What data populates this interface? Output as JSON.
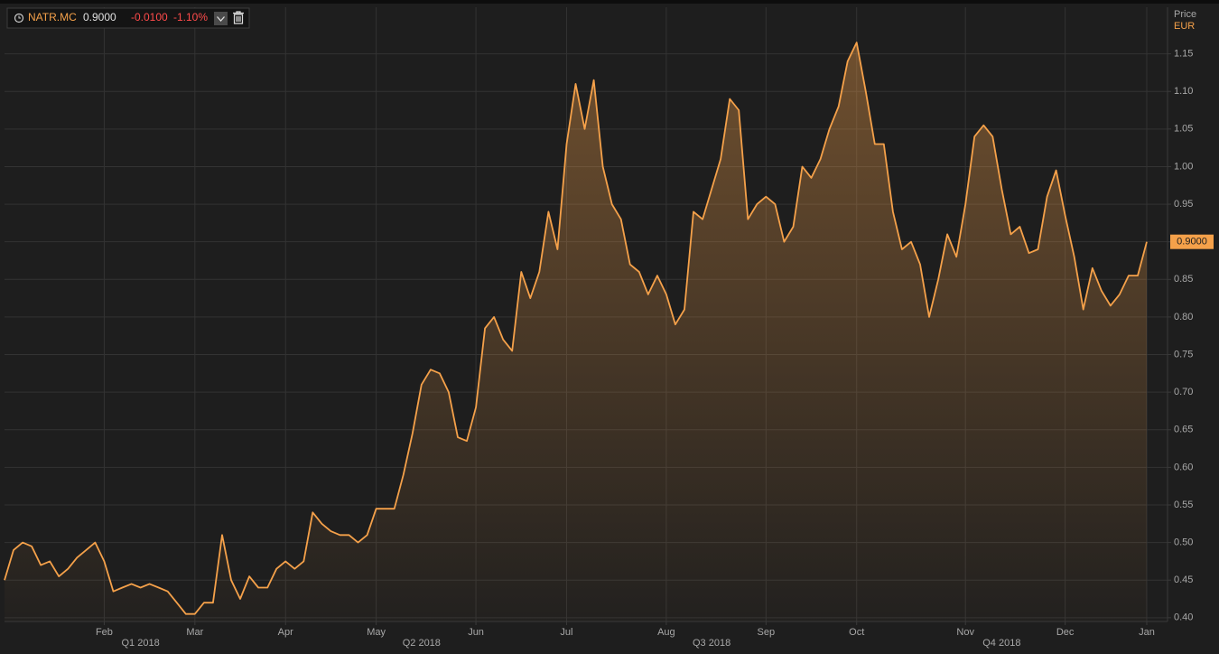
{
  "chart_data": {
    "type": "area",
    "ticker": "NATR.MC",
    "last_price": "0.9000",
    "change": "-0.0100",
    "change_pct": "-1.10%",
    "y_axis_label": "Price",
    "y_axis_unit": "EUR",
    "last_value_label": "0.9000",
    "categories": [
      null,
      null,
      null,
      null,
      null,
      null,
      null,
      null,
      null,
      null,
      null,
      "Feb",
      null,
      null,
      null,
      null,
      null,
      null,
      null,
      null,
      null,
      "Mar",
      null,
      null,
      null,
      null,
      null,
      null,
      null,
      null,
      null,
      "Apr",
      null,
      null,
      null,
      null,
      null,
      null,
      null,
      null,
      null,
      "May",
      null,
      null,
      null,
      null,
      null,
      null,
      null,
      null,
      null,
      null,
      "Jun",
      null,
      null,
      null,
      null,
      null,
      null,
      null,
      null,
      null,
      "Jul",
      null,
      null,
      null,
      null,
      null,
      null,
      null,
      null,
      null,
      null,
      "Aug",
      null,
      null,
      null,
      null,
      null,
      null,
      null,
      null,
      null,
      null,
      "Sep",
      null,
      null,
      null,
      null,
      null,
      null,
      null,
      null,
      null,
      "Oct",
      null,
      null,
      null,
      null,
      null,
      null,
      null,
      null,
      null,
      null,
      null,
      "Nov",
      null,
      null,
      null,
      null,
      null,
      null,
      null,
      null,
      null,
      null,
      "Dec",
      null,
      null,
      null,
      null,
      null,
      null,
      null,
      null,
      "Jan"
    ],
    "quarters": [
      null,
      null,
      null,
      null,
      null,
      null,
      null,
      null,
      null,
      null,
      null,
      null,
      null,
      null,
      null,
      "Q1 2018",
      null,
      null,
      null,
      null,
      null,
      null,
      null,
      null,
      null,
      null,
      null,
      null,
      null,
      null,
      null,
      null,
      null,
      null,
      null,
      null,
      null,
      null,
      null,
      null,
      null,
      null,
      null,
      null,
      null,
      null,
      "Q2 2018",
      null,
      null,
      null,
      null,
      null,
      null,
      null,
      null,
      null,
      null,
      null,
      null,
      null,
      null,
      null,
      null,
      null,
      null,
      null,
      null,
      null,
      null,
      null,
      null,
      null,
      null,
      null,
      null,
      null,
      null,
      null,
      "Q3 2018",
      null,
      null,
      null,
      null,
      null,
      null,
      null,
      null,
      null,
      null,
      null,
      null,
      null,
      null,
      null,
      null,
      null,
      null,
      null,
      null,
      null,
      null,
      null,
      null,
      null,
      null,
      null,
      null,
      null,
      null,
      null,
      "Q4 2018",
      null,
      null,
      null,
      null,
      null,
      null,
      null,
      null,
      null,
      null,
      null,
      null,
      null,
      null,
      null,
      null
    ],
    "series": [
      {
        "name": "NATR.MC",
        "color": "#f5a14a",
        "values": [
          0.45,
          0.49,
          0.5,
          0.495,
          0.47,
          0.475,
          0.455,
          0.465,
          0.48,
          0.49,
          0.5,
          0.475,
          0.435,
          0.44,
          0.445,
          0.44,
          0.445,
          0.44,
          0.435,
          0.42,
          0.405,
          0.405,
          0.42,
          0.42,
          0.51,
          0.45,
          0.425,
          0.455,
          0.44,
          0.44,
          0.465,
          0.475,
          0.465,
          0.475,
          0.54,
          0.525,
          0.515,
          0.51,
          0.51,
          0.5,
          0.51,
          0.545,
          0.545,
          0.545,
          0.59,
          0.645,
          0.71,
          0.73,
          0.725,
          0.7,
          0.64,
          0.635,
          0.68,
          0.785,
          0.8,
          0.77,
          0.755,
          0.86,
          0.825,
          0.86,
          0.94,
          0.89,
          1.03,
          1.11,
          1.05,
          1.115,
          1.0,
          0.95,
          0.93,
          0.87,
          0.86,
          0.83,
          0.855,
          0.83,
          0.79,
          0.81,
          0.94,
          0.93,
          0.97,
          1.01,
          1.09,
          1.075,
          0.93,
          0.95,
          0.96,
          0.95,
          0.9,
          0.92,
          1.0,
          0.985,
          1.01,
          1.05,
          1.08,
          1.14,
          1.165,
          1.1,
          1.03,
          1.03,
          0.94,
          0.89,
          0.9,
          0.87,
          0.8,
          0.85,
          0.91,
          0.88,
          0.95,
          1.04,
          1.055,
          1.04,
          0.97,
          0.91,
          0.92,
          0.885,
          0.89,
          0.96,
          0.995,
          0.935,
          0.88,
          0.81,
          0.865,
          0.835,
          0.815,
          0.83,
          0.855,
          0.855,
          0.9
        ]
      }
    ],
    "ylim": [
      0.395,
      1.212
    ],
    "yticks": [
      {
        "value": 0.4,
        "label": "0.40"
      },
      {
        "value": 0.45,
        "label": "0.45"
      },
      {
        "value": 0.5,
        "label": "0.50"
      },
      {
        "value": 0.55,
        "label": "0.55"
      },
      {
        "value": 0.6,
        "label": "0.60"
      },
      {
        "value": 0.65,
        "label": "0.65"
      },
      {
        "value": 0.7,
        "label": "0.70"
      },
      {
        "value": 0.75,
        "label": "0.75"
      },
      {
        "value": 0.8,
        "label": "0.80"
      },
      {
        "value": 0.85,
        "label": "0.85"
      },
      {
        "value": 0.9,
        "label": "0.90"
      },
      {
        "value": 0.95,
        "label": "0.95"
      },
      {
        "value": 1.0,
        "label": "1.00"
      },
      {
        "value": 1.05,
        "label": "1.05"
      },
      {
        "value": 1.1,
        "label": "1.10"
      },
      {
        "value": 1.15,
        "label": "1.15"
      }
    ],
    "grid": true
  }
}
